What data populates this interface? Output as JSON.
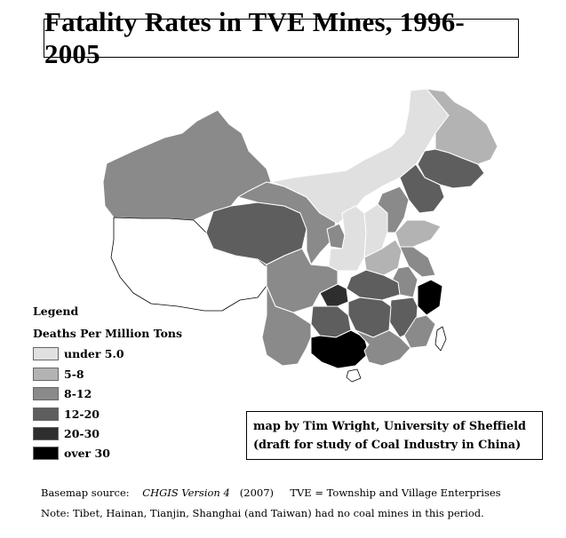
{
  "title": "Fatality Rates in TVE Mines, 1996-2005",
  "legend": {
    "title": "Legend",
    "subtitle": "Deaths Per Million Tons",
    "classes": [
      {
        "label": "under 5.0",
        "color": "#e0e0e0"
      },
      {
        "label": "5-8",
        "color": "#b3b3b3"
      },
      {
        "label": "8-12",
        "color": "#8a8a8a"
      },
      {
        "label": "12-20",
        "color": "#5e5e5e"
      },
      {
        "label": "20-30",
        "color": "#2e2e2e"
      },
      {
        "label": "over 30",
        "color": "#000000"
      }
    ]
  },
  "credit": {
    "line1": "map by Tim Wright, University of Sheffield",
    "line2": "(draft for study of Coal Industry in China)"
  },
  "footnote": {
    "basemap_prefix": "Basemap source:",
    "basemap_name": "CHGIS Version 4",
    "basemap_year": "(2007)",
    "tve": "TVE = Township and Village Enterprises",
    "note": "Note:  Tibet, Hainan, Tianjin, Shanghai (and Taiwan) had no coal mines in this period."
  }
}
